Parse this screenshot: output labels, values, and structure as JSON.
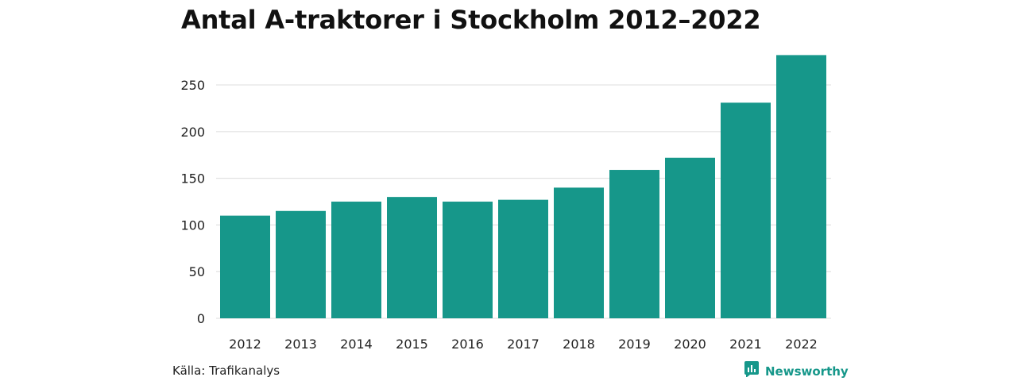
{
  "colors": {
    "bar": "#16978a",
    "grid": "#dcdcdc",
    "brand": "#16978a"
  },
  "source": "Källa: Trafikanalys",
  "brand": {
    "name": "Newsworthy",
    "icon": "newsworthy-logo-icon"
  },
  "chart_data": {
    "type": "bar",
    "title": "Antal A-traktorer i Stockholm 2012–2022",
    "xlabel": "",
    "ylabel": "",
    "categories": [
      "2012",
      "2013",
      "2014",
      "2015",
      "2016",
      "2017",
      "2018",
      "2019",
      "2020",
      "2021",
      "2022"
    ],
    "values": [
      110,
      115,
      125,
      130,
      125,
      127,
      140,
      159,
      172,
      231,
      282
    ],
    "ylim": [
      0,
      290
    ],
    "yticks": [
      0,
      50,
      100,
      150,
      200,
      250
    ],
    "grid": true,
    "legend": "none"
  }
}
